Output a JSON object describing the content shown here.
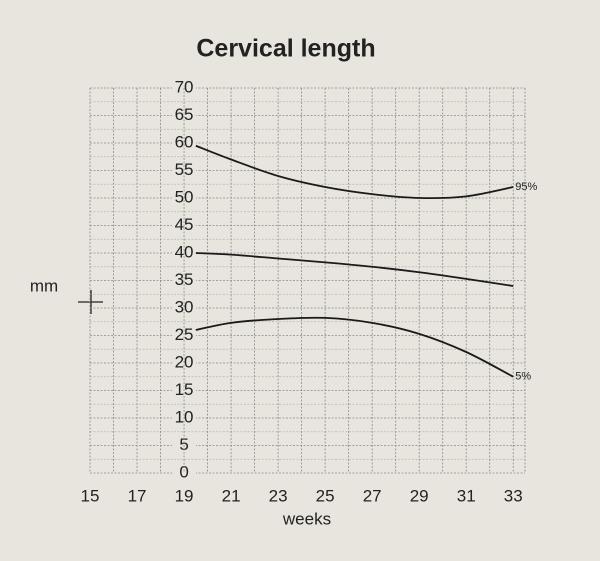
{
  "chart_data": {
    "type": "line",
    "title": "Cervical length",
    "x_label": "weeks",
    "y_label": "mm",
    "x": [
      19.5,
      21,
      23,
      25,
      27,
      29,
      31,
      33
    ],
    "series": [
      {
        "name": "95%",
        "color": "#1a1a1a",
        "values": [
          59.5,
          57,
          54,
          52,
          50.7,
          50,
          50.3,
          52
        ]
      },
      {
        "color": "#1a1a1a",
        "values": [
          40,
          39.7,
          39,
          38.3,
          37.5,
          36.5,
          35.3,
          34
        ]
      },
      {
        "name": "5%",
        "color": "#1a1a1a",
        "values": [
          26,
          27.3,
          28,
          28.2,
          27.3,
          25.3,
          22,
          17.5
        ]
      }
    ],
    "xlim": [
      15,
      33.5
    ],
    "ylim": [
      0,
      70
    ],
    "xticks": [
      15,
      17,
      19,
      21,
      23,
      25,
      27,
      29,
      31,
      33
    ],
    "yticks": [
      0,
      5,
      10,
      15,
      20,
      25,
      30,
      35,
      40,
      45,
      50,
      55,
      60,
      65,
      70
    ],
    "grid": true
  }
}
